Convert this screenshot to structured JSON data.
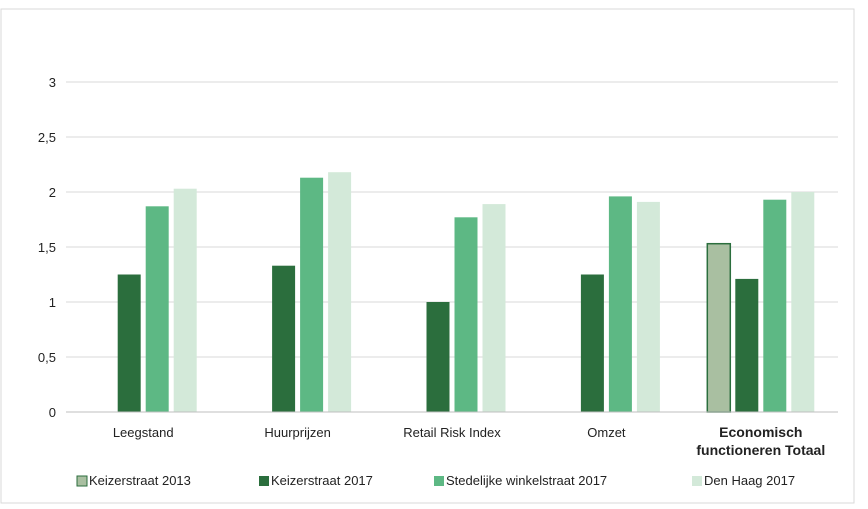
{
  "chart_data": {
    "type": "bar",
    "categories": [
      "Leegstand",
      "Huurprijzen",
      "Retail Risk Index",
      "Omzet",
      "Economisch functioneren Totaal"
    ],
    "category_lines": [
      [
        "Leegstand"
      ],
      [
        "Huurprijzen"
      ],
      [
        "Retail Risk Index"
      ],
      [
        "Omzet"
      ],
      [
        "Economisch",
        "functioneren Totaal"
      ]
    ],
    "series": [
      {
        "name": "Keizerstraat 2013",
        "color": "#a9bfa1",
        "stroke": "#2b6e3d",
        "values": [
          null,
          null,
          null,
          null,
          1.53
        ]
      },
      {
        "name": "Keizerstraat 2017",
        "color": "#2b6e3d",
        "values": [
          1.25,
          1.33,
          1.0,
          1.25,
          1.21
        ]
      },
      {
        "name": "Stedelijke winkelstraat 2017",
        "color": "#5db884",
        "values": [
          1.87,
          2.13,
          1.77,
          1.96,
          1.93
        ]
      },
      {
        "name": "Den Haag 2017",
        "color": "#d3e9d9",
        "values": [
          2.03,
          2.18,
          1.89,
          1.91,
          2.0
        ]
      }
    ],
    "ylim": [
      0,
      3
    ],
    "yticks": [
      "0",
      "0,5",
      "1",
      "1,5",
      "2",
      "2,5",
      "3"
    ],
    "ytick_values": [
      0,
      0.5,
      1,
      1.5,
      2,
      2.5,
      3
    ],
    "grid": true,
    "legend": "bottom"
  }
}
